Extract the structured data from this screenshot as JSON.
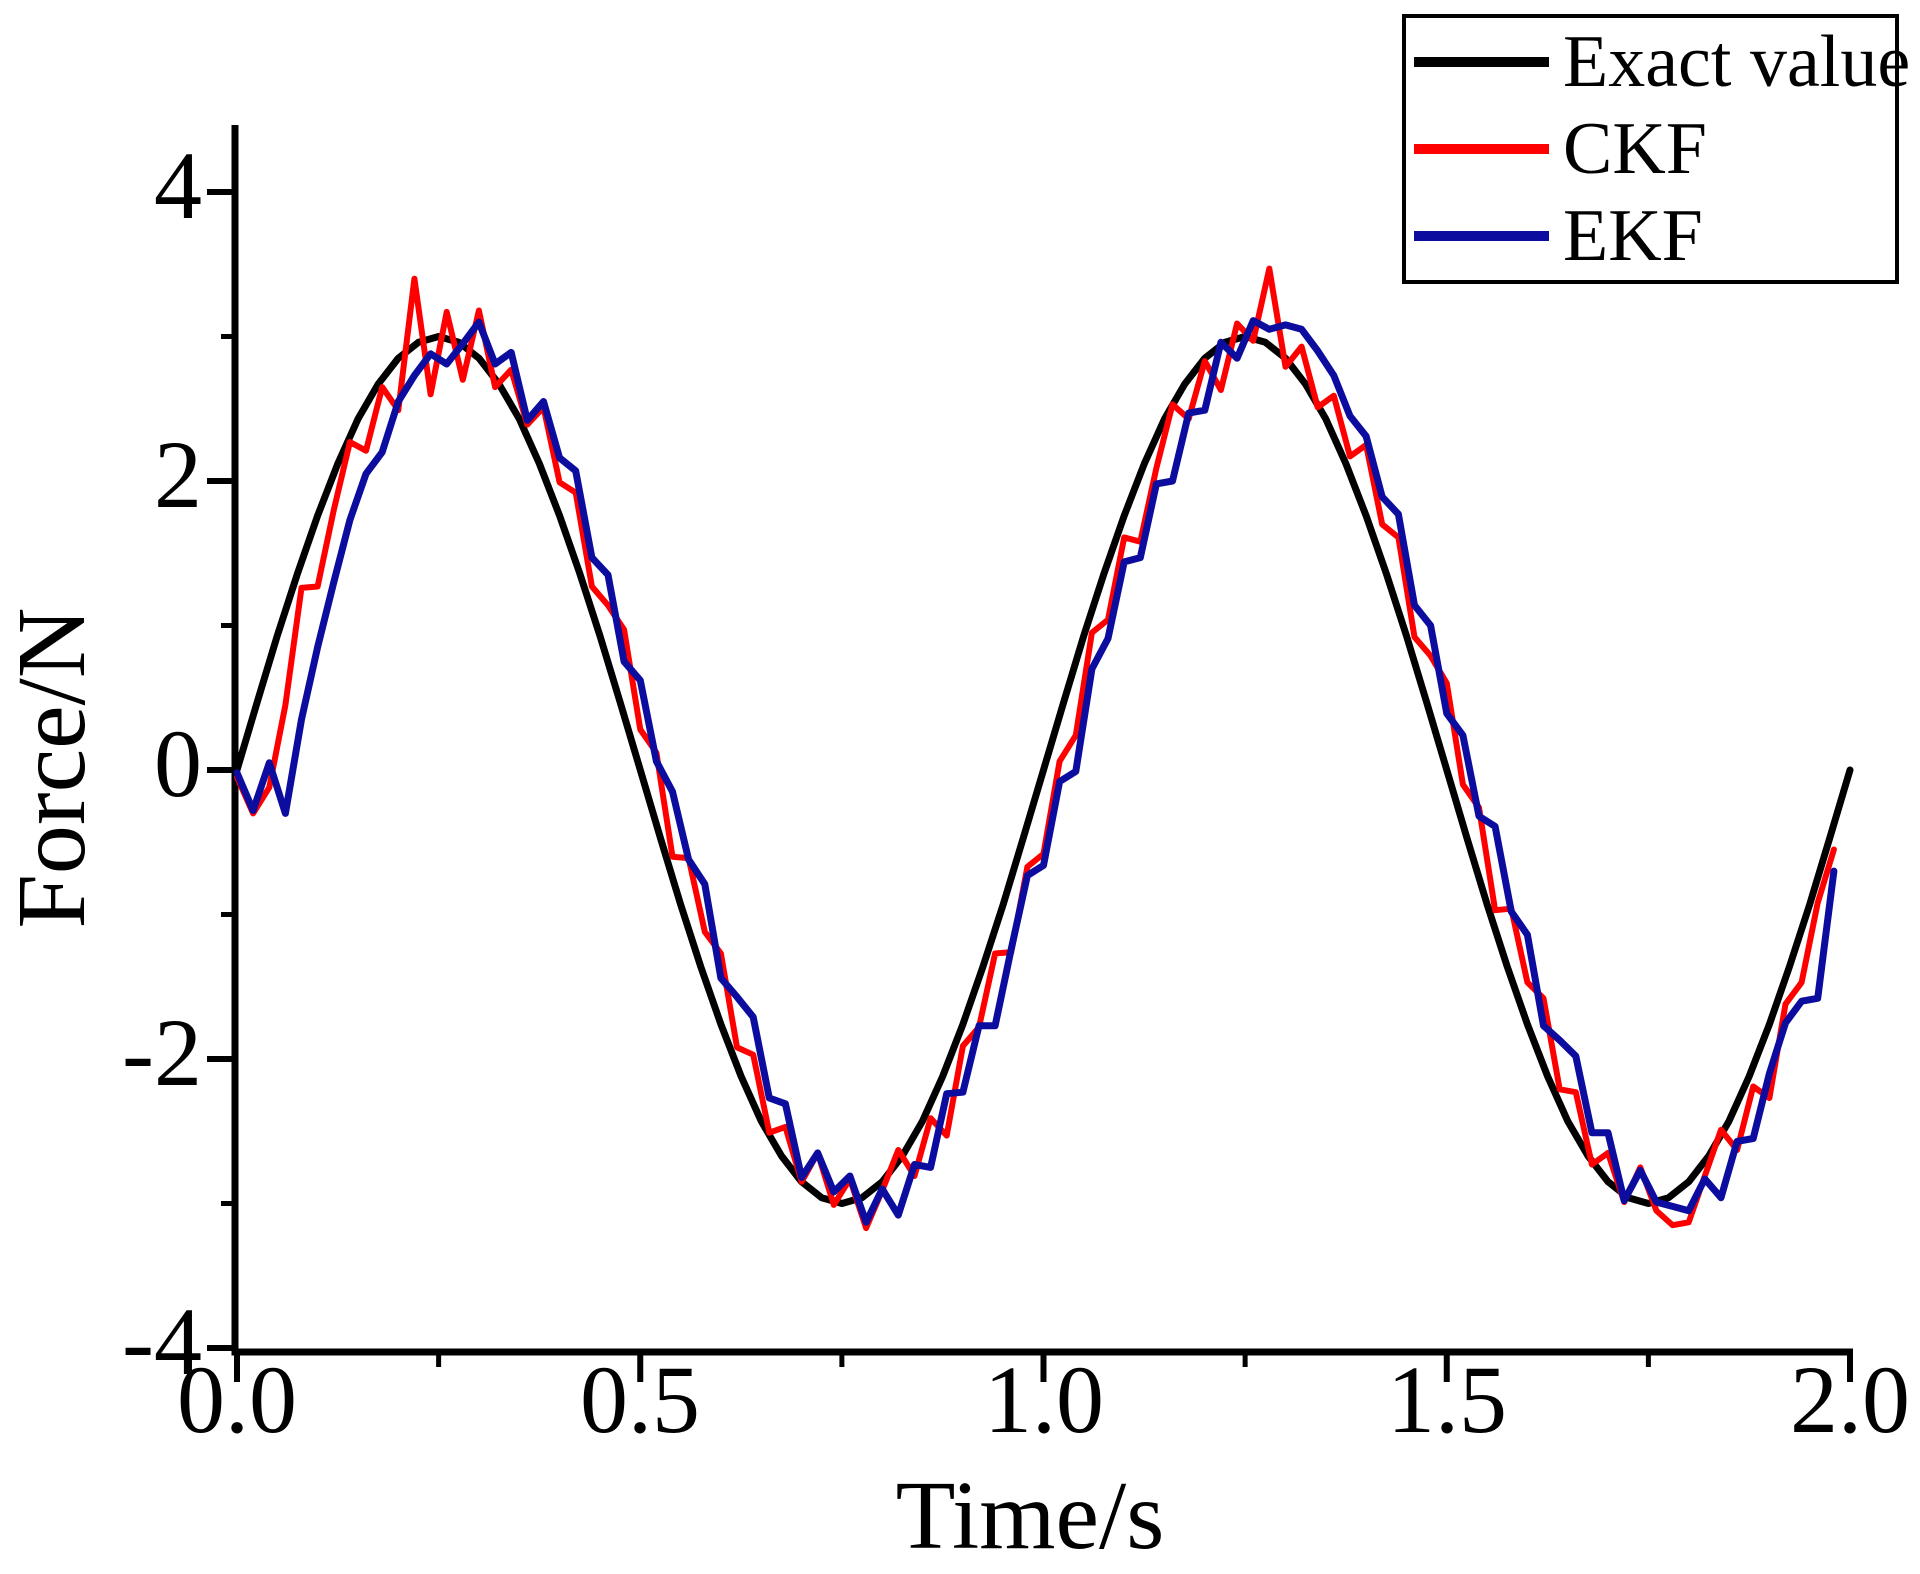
{
  "chart_data": {
    "type": "line",
    "xlabel": "Time/s",
    "ylabel": "Force/N",
    "xlim": [
      0,
      2
    ],
    "ylim": [
      -4,
      4.43
    ],
    "grid": false,
    "background": "#ffffff",
    "axis_color": "#000000",
    "x_ticks": {
      "major": [
        0,
        0.5,
        1.0,
        1.5,
        2.0
      ],
      "labels": [
        "0.0",
        "0.5",
        "1.0",
        "1.5",
        "2.0"
      ],
      "minor": [
        0.25,
        0.75,
        1.25,
        1.75
      ]
    },
    "y_ticks": {
      "major": [
        4,
        2,
        0,
        -2,
        -4
      ],
      "labels": [
        "4",
        "2",
        "0",
        "-2",
        "-4"
      ],
      "minor": [
        3,
        1,
        -1,
        -3
      ]
    },
    "legend": {
      "position": "top-right",
      "entries": [
        {
          "label": "Exact value",
          "color": "#000000"
        },
        {
          "label": "CKF",
          "color": "#ff0000"
        },
        {
          "label": "EKF",
          "color": "#0c0c9e"
        }
      ]
    },
    "series": [
      {
        "name": "Exact value",
        "color": "#000000",
        "stroke_width": 7,
        "t0": 0,
        "dt": 0.025,
        "values": [
          0.0,
          0.47,
          0.93,
          1.36,
          1.76,
          2.12,
          2.43,
          2.67,
          2.85,
          2.96,
          3.0,
          2.96,
          2.85,
          2.67,
          2.43,
          2.12,
          1.76,
          1.36,
          0.93,
          0.47,
          0.0,
          -0.47,
          -0.93,
          -1.36,
          -1.76,
          -2.12,
          -2.43,
          -2.67,
          -2.85,
          -2.96,
          -3.0,
          -2.96,
          -2.85,
          -2.67,
          -2.43,
          -2.12,
          -1.76,
          -1.36,
          -0.93,
          -0.47,
          0.0,
          0.47,
          0.93,
          1.36,
          1.76,
          2.12,
          2.43,
          2.67,
          2.85,
          2.96,
          3.0,
          2.96,
          2.85,
          2.67,
          2.43,
          2.12,
          1.76,
          1.36,
          0.93,
          0.47,
          0.0,
          -0.47,
          -0.93,
          -1.36,
          -1.76,
          -2.12,
          -2.43,
          -2.67,
          -2.85,
          -2.96,
          -3.0,
          -2.96,
          -2.85,
          -2.67,
          -2.43,
          -2.12,
          -1.76,
          -1.36,
          -0.93,
          -0.47,
          0.0
        ]
      },
      {
        "name": "CKF",
        "color": "#ff0000",
        "stroke_width": 6,
        "t0": 0,
        "dt": 0.02,
        "values": [
          -0.05,
          -0.3,
          -0.12,
          0.45,
          1.26,
          1.27,
          1.8,
          2.27,
          2.21,
          2.65,
          2.49,
          3.4,
          2.6,
          3.17,
          2.7,
          3.18,
          2.65,
          2.77,
          2.39,
          2.51,
          1.99,
          1.92,
          1.27,
          1.14,
          0.97,
          0.28,
          0.12,
          -0.6,
          -0.61,
          -1.12,
          -1.27,
          -1.92,
          -1.97,
          -2.51,
          -2.47,
          -2.85,
          -2.65,
          -3.01,
          -2.83,
          -3.17,
          -2.91,
          -2.63,
          -2.81,
          -2.41,
          -2.53,
          -1.91,
          -1.78,
          -1.27,
          -1.26,
          -0.67,
          -0.58,
          0.06,
          0.24,
          0.95,
          1.04,
          1.61,
          1.58,
          2.09,
          2.53,
          2.43,
          2.83,
          2.63,
          3.09,
          2.97,
          3.47,
          2.79,
          2.93,
          2.51,
          2.59,
          2.17,
          2.25,
          1.7,
          1.61,
          0.92,
          0.79,
          0.6,
          -0.1,
          -0.26,
          -0.97,
          -0.96,
          -1.47,
          -1.58,
          -2.21,
          -2.23,
          -2.73,
          -2.65,
          -2.99,
          -2.75,
          -3.05,
          -3.15,
          -3.13,
          -2.81,
          -2.49,
          -2.63,
          -2.19,
          -2.27,
          -1.62,
          -1.47,
          -0.92,
          -0.55
        ]
      },
      {
        "name": "EKF",
        "color": "#0c0c9e",
        "stroke_width": 7,
        "t0": 0,
        "dt": 0.02,
        "values": [
          -0.02,
          -0.28,
          0.05,
          -0.3,
          0.35,
          0.85,
          1.3,
          1.73,
          2.05,
          2.2,
          2.55,
          2.73,
          2.88,
          2.81,
          2.95,
          3.1,
          2.81,
          2.89,
          2.42,
          2.55,
          2.16,
          2.07,
          1.47,
          1.35,
          0.75,
          0.62,
          0.06,
          -0.15,
          -0.62,
          -0.79,
          -1.44,
          -1.57,
          -1.71,
          -2.27,
          -2.31,
          -2.82,
          -2.65,
          -2.92,
          -2.81,
          -3.13,
          -2.9,
          -3.08,
          -2.73,
          -2.75,
          -2.24,
          -2.23,
          -1.77,
          -1.77,
          -1.24,
          -0.73,
          -0.66,
          -0.08,
          -0.01,
          0.7,
          0.91,
          1.44,
          1.47,
          1.98,
          2.0,
          2.47,
          2.49,
          2.96,
          2.85,
          3.11,
          3.05,
          3.08,
          3.05,
          2.9,
          2.73,
          2.45,
          2.31,
          1.89,
          1.77,
          1.14,
          1.0,
          0.39,
          0.24,
          -0.32,
          -0.39,
          -0.98,
          -1.14,
          -1.77,
          -1.87,
          -1.98,
          -2.51,
          -2.51,
          -2.98,
          -2.77,
          -2.99,
          -3.02,
          -3.05,
          -2.83,
          -2.96,
          -2.57,
          -2.55,
          -2.1,
          -1.75,
          -1.6,
          -1.58,
          -0.7
        ]
      }
    ]
  }
}
